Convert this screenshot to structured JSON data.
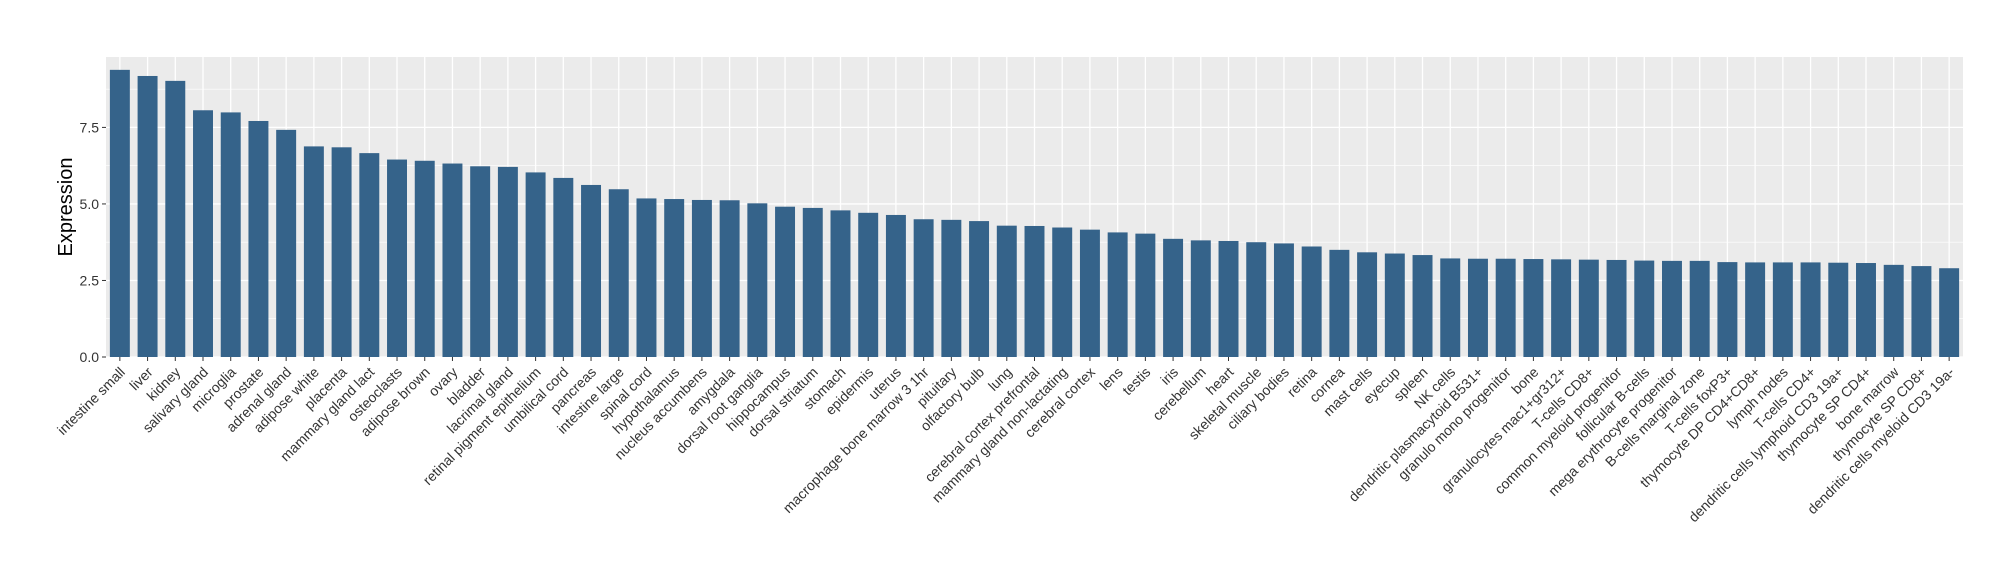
{
  "chart_data": {
    "type": "bar",
    "title": "",
    "xlabel": "",
    "ylabel": "Expression",
    "ylim": [
      0,
      9.8
    ],
    "yticks": [
      0.0,
      2.5,
      5.0,
      7.5
    ],
    "ytick_labels": [
      "0.0",
      "2.5",
      "5.0",
      "7.5"
    ],
    "grid": true,
    "legend": "none",
    "colors": {
      "bar": "#35638a",
      "panel": "#ebebeb",
      "grid": "#ffffff"
    },
    "categories": [
      "intestine small",
      "liver",
      "kidney",
      "salivary gland",
      "microglia",
      "prostate",
      "adrenal gland",
      "adipose white",
      "placenta",
      "mammary gland lact",
      "osteoclasts",
      "adipose brown",
      "ovary",
      "bladder",
      "lacrimal gland",
      "retinal pigment epithelium",
      "umbilical cord",
      "pancreas",
      "intestine large",
      "spinal cord",
      "hypothalamus",
      "nucleus accumbens",
      "amygdala",
      "dorsal root ganglia",
      "hippocampus",
      "dorsal striatum",
      "stomach",
      "epidermis",
      "uterus",
      "macrophage bone marrow 3 1hr",
      "pituitary",
      "olfactory bulb",
      "lung",
      "cerebral cortex prefrontal",
      "mammary gland non-lactating",
      "cerebral cortex",
      "lens",
      "testis",
      "iris",
      "cerebellum",
      "heart",
      "skeletal muscle",
      "ciliary bodies",
      "retina",
      "cornea",
      "mast cells",
      "eyecup",
      "spleen",
      "NK cells",
      "dendritic plasmacytoid B531+",
      "granulo mono progenitor",
      "bone",
      "granulocytes mac1+gr312+",
      "T-cells CD8+",
      "common myeloid progenitor",
      "follicular B-cells",
      "mega erythrocyte progenitor",
      "B-cells marginal zone",
      "T-cells foxP3+",
      "thymocyte DP CD4+CD8+",
      "lymph nodes",
      "T-cells CD4+",
      "dendritic cells lymphoid CD3 19a+",
      "thymocyte SP CD4+",
      "bone marrow",
      "thymocyte SP CD8+",
      "dendritic cells myeloid CD3 19a-"
    ],
    "values": [
      9.38,
      9.18,
      9.02,
      8.06,
      7.99,
      7.71,
      7.42,
      6.88,
      6.85,
      6.66,
      6.45,
      6.41,
      6.32,
      6.23,
      6.21,
      6.03,
      5.85,
      5.62,
      5.48,
      5.18,
      5.16,
      5.13,
      5.12,
      5.02,
      4.91,
      4.87,
      4.79,
      4.71,
      4.64,
      4.5,
      4.48,
      4.44,
      4.29,
      4.28,
      4.23,
      4.16,
      4.07,
      4.03,
      3.86,
      3.81,
      3.79,
      3.75,
      3.71,
      3.61,
      3.5,
      3.42,
      3.38,
      3.33,
      3.22,
      3.21,
      3.21,
      3.2,
      3.19,
      3.18,
      3.17,
      3.15,
      3.14,
      3.14,
      3.1,
      3.09,
      3.09,
      3.09,
      3.08,
      3.07,
      3.01,
      2.97,
      2.9
    ]
  }
}
